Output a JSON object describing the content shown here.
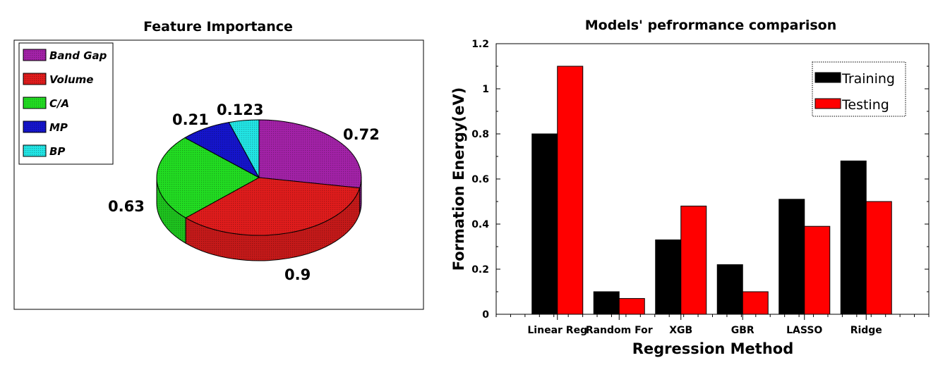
{
  "chart_data": [
    {
      "type": "pie",
      "title": "Feature Importance",
      "slices": [
        {
          "label": "Band Gap",
          "value": 0.72,
          "color": "#A322A8"
        },
        {
          "label": "Volume",
          "value": 0.9,
          "color": "#E01C1C"
        },
        {
          "label": "C/A",
          "value": 0.63,
          "color": "#22DD22"
        },
        {
          "label": "MP",
          "value": 0.21,
          "color": "#1515CC"
        },
        {
          "label": "BP",
          "value": 0.123,
          "color": "#22E5E5"
        }
      ],
      "value_labels": [
        "0.72",
        "0.9",
        "0.63",
        "0.21",
        "0.123"
      ],
      "style": "3d",
      "legend": "top-left"
    },
    {
      "type": "bar",
      "title": "Models' pefrormance comparison",
      "xlabel": "Regression Method",
      "ylabel": "Formation Energy(eV)",
      "categories": [
        "Linear Reg",
        "Random For",
        "XGB",
        "GBR",
        "LASSO",
        "Ridge"
      ],
      "series": [
        {
          "name": "Training",
          "values": [
            0.8,
            0.1,
            0.33,
            0.22,
            0.51,
            0.68
          ],
          "color": "#000000"
        },
        {
          "name": "Testing",
          "values": [
            1.1,
            0.07,
            0.48,
            0.1,
            0.39,
            0.5
          ],
          "color": "#FF0000"
        }
      ],
      "ylim": [
        0,
        1.2
      ],
      "yticks": [
        "0",
        "0.2",
        "0.4",
        "0.6",
        "0.8",
        "1",
        "1.2"
      ],
      "grid": false,
      "legend": "top-right"
    }
  ]
}
